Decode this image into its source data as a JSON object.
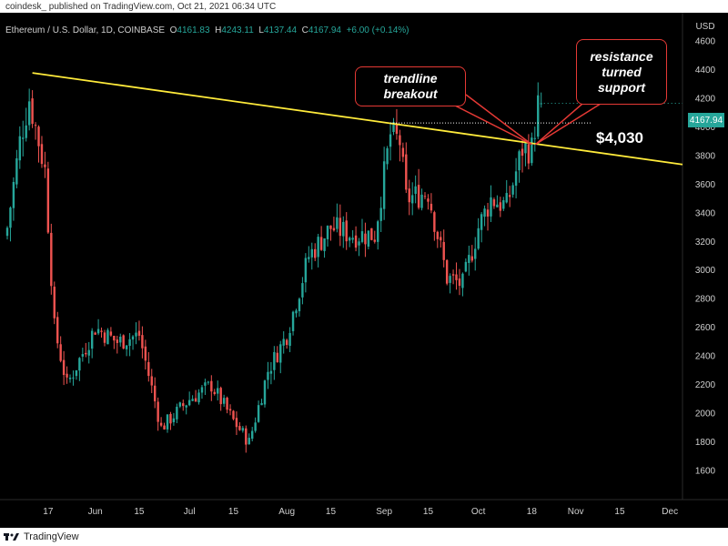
{
  "header": {
    "text": "coindesk_  published on TradingView.com, Oct 21, 2021 06:34 UTC"
  },
  "legend": {
    "symbol": "Ethereum / U.S. Dollar, 1D, COINBASE",
    "o_label": "O",
    "o": "4161.83",
    "h_label": "H",
    "h": "4243.11",
    "l_label": "L",
    "l": "4137.44",
    "c_label": "C",
    "c": "4167.94",
    "change": "+6.00 (+0.14%)"
  },
  "currency": "USD",
  "last_price_label": "4167.94",
  "annotations": {
    "trendline": "trendline breakout",
    "resistance_line1": "resistance",
    "resistance_line2": "turned support",
    "price_level": "$4,030"
  },
  "footer": {
    "brand": "TradingView"
  },
  "colors": {
    "up": "#26a69a",
    "down": "#ef5350",
    "trendline": "#ffeb3b",
    "annotation_border": "#e53935",
    "background": "#000000"
  },
  "chart_data": {
    "type": "candlestick",
    "title": "",
    "xlabel": "",
    "ylabel": "",
    "ylim": [
      1400,
      4800
    ],
    "y_ticks": [
      1600,
      1800,
      2000,
      2200,
      2400,
      2600,
      2800,
      3000,
      3200,
      3400,
      3600,
      3800,
      4000,
      4200,
      4400,
      4600
    ],
    "x_ticks": [
      "17",
      "Jun",
      "15",
      "Jul",
      "15",
      "Aug",
      "15",
      "Sep",
      "15",
      "Oct",
      "18",
      "Nov",
      "15",
      "Dec"
    ],
    "x_tick_dates": [
      "2021-05-17",
      "2021-06-01",
      "2021-06-15",
      "2021-07-01",
      "2021-07-15",
      "2021-08-01",
      "2021-08-15",
      "2021-09-01",
      "2021-09-15",
      "2021-10-01",
      "2021-10-18",
      "2021-11-01",
      "2021-11-15",
      "2021-12-01"
    ],
    "x_range": [
      "2021-05-04",
      "2021-12-05"
    ],
    "closes_approx": [
      [
        "2021-05-04",
        3300
      ],
      [
        "2021-05-08",
        3900
      ],
      [
        "2021-05-11",
        4200
      ],
      [
        "2021-05-16",
        3700
      ],
      [
        "2021-05-19",
        2600
      ],
      [
        "2021-05-23",
        2200
      ],
      [
        "2021-06-01",
        2600
      ],
      [
        "2021-06-08",
        2500
      ],
      [
        "2021-06-15",
        2550
      ],
      [
        "2021-06-22",
        1900
      ],
      [
        "2021-07-01",
        2100
      ],
      [
        "2021-07-08",
        2200
      ],
      [
        "2021-07-15",
        1950
      ],
      [
        "2021-07-20",
        1800
      ],
      [
        "2021-07-26",
        2300
      ],
      [
        "2021-08-01",
        2550
      ],
      [
        "2021-08-08",
        3100
      ],
      [
        "2021-08-15",
        3300
      ],
      [
        "2021-08-22",
        3250
      ],
      [
        "2021-08-29",
        3250
      ],
      [
        "2021-09-03",
        3950
      ],
      [
        "2021-09-06",
        3900
      ],
      [
        "2021-09-08",
        3500
      ],
      [
        "2021-09-15",
        3550
      ],
      [
        "2021-09-21",
        2950
      ],
      [
        "2021-09-26",
        2900
      ],
      [
        "2021-10-01",
        3300
      ],
      [
        "2021-10-05",
        3500
      ],
      [
        "2021-10-10",
        3450
      ],
      [
        "2021-10-15",
        3850
      ],
      [
        "2021-10-18",
        3850
      ],
      [
        "2021-10-20",
        4160
      ],
      [
        "2021-10-21",
        4167.94
      ]
    ],
    "last_candle": {
      "date": "2021-10-21",
      "open": 4161.83,
      "high": 4243.11,
      "low": 4137.44,
      "close": 4167.94
    },
    "trendline": {
      "from": [
        "2021-05-12",
        4380
      ],
      "to": [
        "2021-12-05",
        3740
      ]
    },
    "horizontal_level": {
      "value": 4030,
      "from": "2021-09-03",
      "to": "2021-10-22"
    },
    "grid": false
  }
}
